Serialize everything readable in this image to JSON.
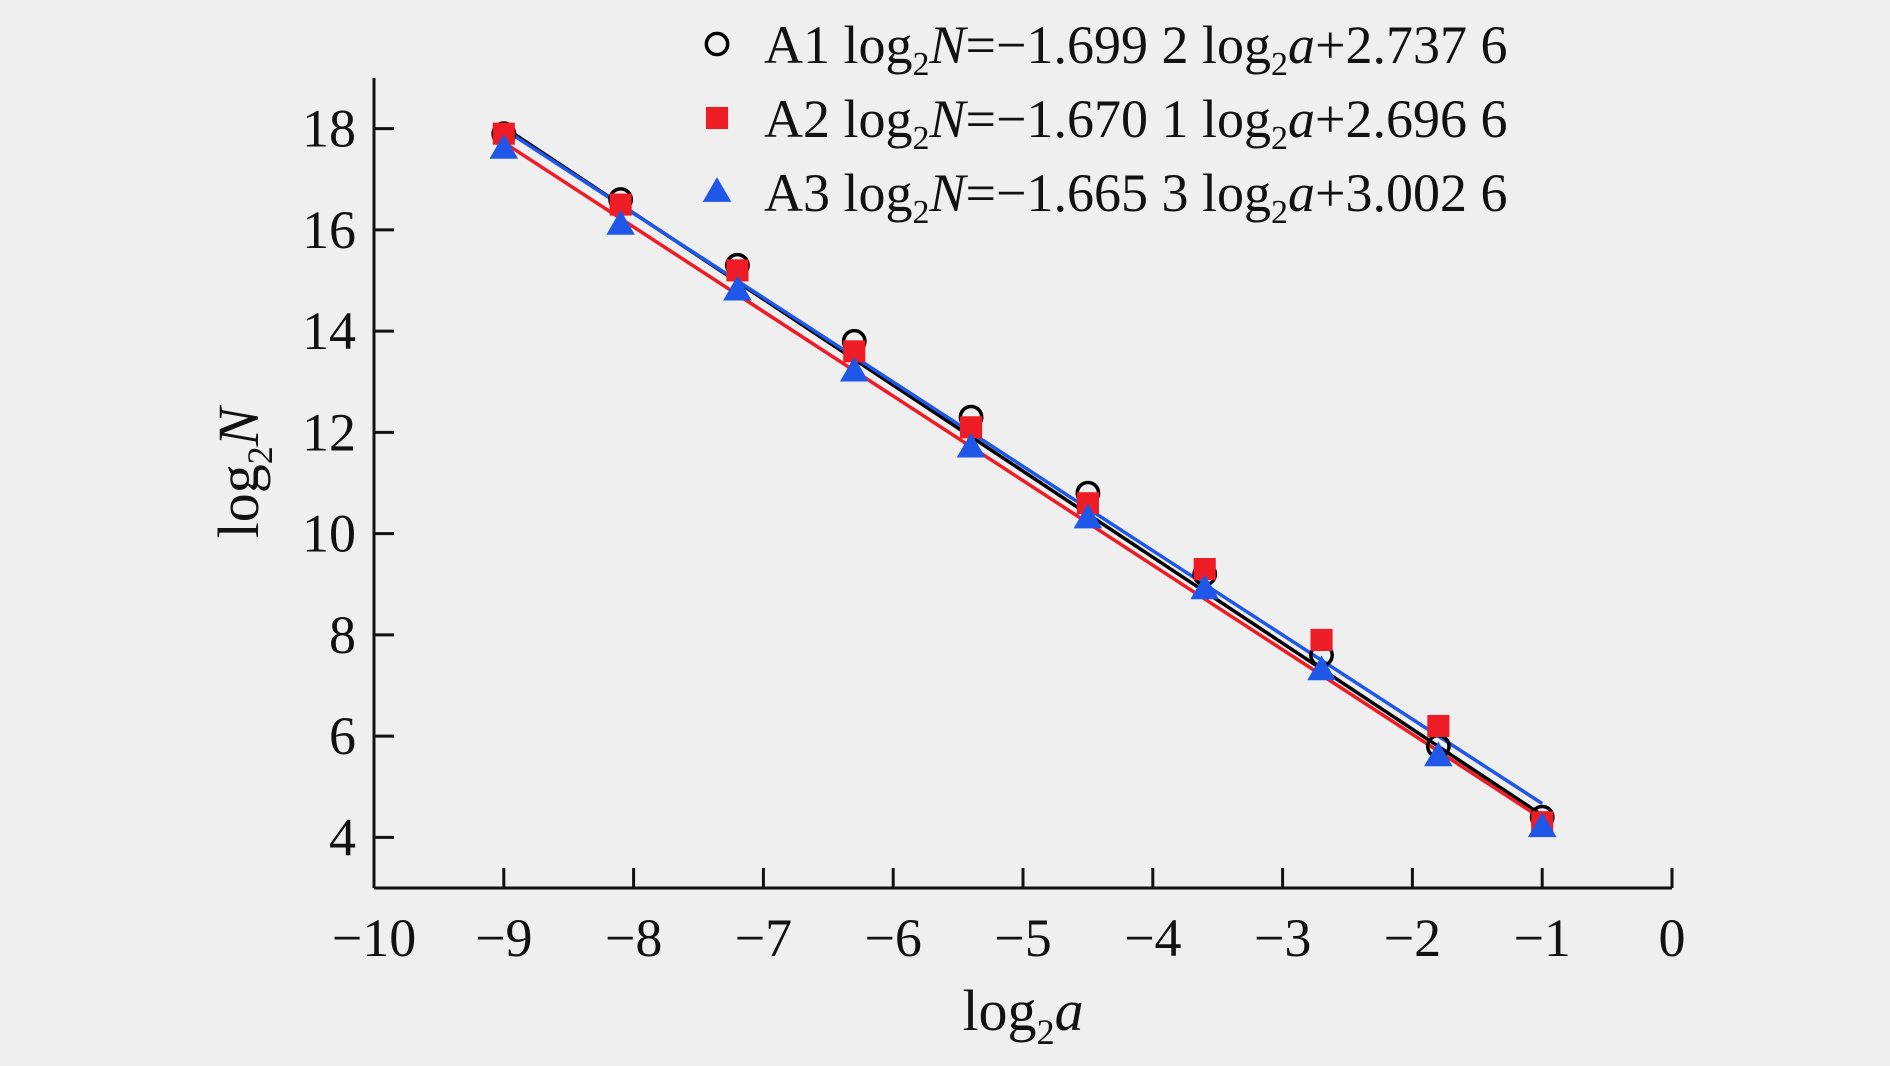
{
  "chart_data": {
    "type": "scatter",
    "xlabel": {
      "base": "log",
      "sub": "2",
      "var": "a"
    },
    "ylabel": {
      "base": "log",
      "sub": "2",
      "var": "N"
    },
    "xlim": [
      -10,
      0
    ],
    "ylim": [
      3,
      19
    ],
    "xticks": [
      -10,
      -9,
      -8,
      -7,
      -6,
      -5,
      -4,
      -3,
      -2,
      -1,
      0
    ],
    "xtick_labels": [
      "−10",
      "−9",
      "−8",
      "−7",
      "−6",
      "−5",
      "−4",
      "−3",
      "−2",
      "−1",
      "0"
    ],
    "yticks": [
      4,
      6,
      8,
      10,
      12,
      14,
      16,
      18
    ],
    "ytick_labels": [
      "4",
      "6",
      "8",
      "10",
      "12",
      "14",
      "16",
      "18"
    ],
    "grid": false,
    "legend_position": "top-right",
    "series": [
      {
        "name": "A1",
        "marker": "circle-open",
        "color": "#000000",
        "slope": -1.6992,
        "intercept": 2.7376,
        "legend_parts": [
          "−1.699 2 ",
          "+2.737 6"
        ],
        "x": [
          -9.0,
          -8.1,
          -7.2,
          -6.3,
          -5.4,
          -4.5,
          -3.6,
          -2.7,
          -1.8,
          -1.0
        ],
        "y": [
          17.9,
          16.6,
          15.3,
          13.8,
          12.3,
          10.8,
          9.2,
          7.6,
          5.8,
          4.4
        ]
      },
      {
        "name": "A2",
        "marker": "square",
        "color": "#ee1c25",
        "slope": -1.6701,
        "intercept": 2.6966,
        "legend_parts": [
          "−1.670 1 ",
          "+2.696 6"
        ],
        "x": [
          -9.0,
          -8.1,
          -7.2,
          -6.3,
          -5.4,
          -4.5,
          -3.6,
          -2.7,
          -1.8,
          -1.0
        ],
        "y": [
          17.9,
          16.5,
          15.2,
          13.6,
          12.1,
          10.6,
          9.3,
          7.9,
          6.2,
          4.3
        ]
      },
      {
        "name": "A3",
        "marker": "triangle",
        "color": "#1f57e8",
        "slope": -1.6653,
        "intercept": 3.0026,
        "legend_parts": [
          "−1.665 3 ",
          "+3.002 6"
        ],
        "x": [
          -9.0,
          -8.1,
          -7.2,
          -6.3,
          -5.4,
          -4.5,
          -3.6,
          -2.7,
          -1.8,
          -1.0
        ],
        "y": [
          17.6,
          16.1,
          14.8,
          13.2,
          11.7,
          10.3,
          8.9,
          7.3,
          5.6,
          4.2
        ]
      }
    ]
  }
}
